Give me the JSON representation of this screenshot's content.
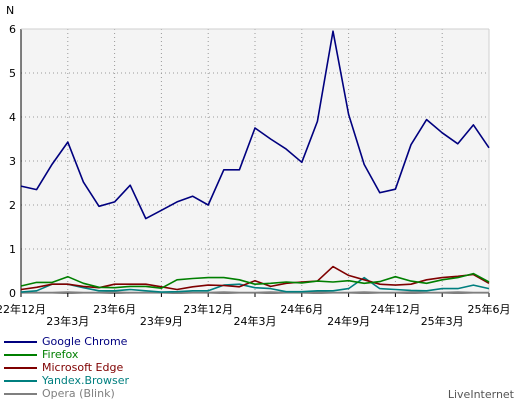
{
  "chart_data": {
    "type": "line",
    "ylabel": "N",
    "ylim": [
      0,
      6
    ],
    "yticks": [
      0,
      1,
      2,
      3,
      4,
      5,
      6
    ],
    "x_months": [
      "22年12月",
      "23年1月",
      "23年2月",
      "23年3月",
      "23年4月",
      "23年5月",
      "23年6月",
      "23年7月",
      "23年8月",
      "23年9月",
      "23年10月",
      "23年11月",
      "23年12月",
      "24年1月",
      "24年2月",
      "24年3月",
      "24年4月",
      "24年5月",
      "24年6月",
      "24年7月",
      "24年8月",
      "24年9月",
      "24年10月",
      "24年11月",
      "24年12月",
      "25年1月",
      "25年2月",
      "25年3月",
      "25年4月",
      "25年5月",
      "25年6月"
    ],
    "xtick_labels": [
      {
        "label": "22年12月",
        "index": 0,
        "row": 0
      },
      {
        "label": "23年3月",
        "index": 3,
        "row": 1
      },
      {
        "label": "23年6月",
        "index": 6,
        "row": 0
      },
      {
        "label": "23年9月",
        "index": 9,
        "row": 1
      },
      {
        "label": "23年12月",
        "index": 12,
        "row": 0
      },
      {
        "label": "24年3月",
        "index": 15,
        "row": 1
      },
      {
        "label": "24年6月",
        "index": 18,
        "row": 0
      },
      {
        "label": "24年9月",
        "index": 21,
        "row": 1
      },
      {
        "label": "24年12月",
        "index": 24,
        "row": 0
      },
      {
        "label": "25年3月",
        "index": 27,
        "row": 1
      },
      {
        "label": "25年6月",
        "index": 30,
        "row": 0
      }
    ],
    "grid": true,
    "legend_position": "bottom-left",
    "series": [
      {
        "name": "Google Chrome",
        "color": "#00007f",
        "values": [
          2.43,
          2.35,
          2.93,
          3.43,
          2.52,
          1.97,
          2.07,
          2.45,
          1.69,
          1.88,
          2.07,
          2.2,
          2.0,
          2.8,
          2.8,
          3.75,
          3.5,
          3.27,
          2.97,
          3.9,
          5.95,
          4.06,
          2.92,
          2.28,
          2.36,
          3.37,
          3.94,
          3.64,
          3.39,
          3.82,
          3.3
        ]
      },
      {
        "name": "Firefox",
        "color": "#007f00",
        "values": [
          0.16,
          0.24,
          0.24,
          0.37,
          0.22,
          0.13,
          0.12,
          0.15,
          0.15,
          0.11,
          0.3,
          0.33,
          0.35,
          0.35,
          0.3,
          0.2,
          0.22,
          0.25,
          0.23,
          0.27,
          0.25,
          0.28,
          0.22,
          0.26,
          0.37,
          0.27,
          0.22,
          0.3,
          0.35,
          0.44,
          0.25
        ]
      },
      {
        "name": "Microsoft Edge",
        "color": "#7f0000",
        "values": [
          0.08,
          0.13,
          0.2,
          0.2,
          0.15,
          0.12,
          0.2,
          0.2,
          0.2,
          0.14,
          0.08,
          0.14,
          0.18,
          0.17,
          0.14,
          0.28,
          0.15,
          0.22,
          0.25,
          0.27,
          0.6,
          0.4,
          0.3,
          0.2,
          0.18,
          0.2,
          0.3,
          0.35,
          0.38,
          0.42,
          0.22
        ]
      },
      {
        "name": "Yandex.Browser",
        "color": "#007f7f",
        "values": [
          0.02,
          0.05,
          0.2,
          0.2,
          0.12,
          0.05,
          0.05,
          0.08,
          0.05,
          0.02,
          0.03,
          0.05,
          0.05,
          0.18,
          0.2,
          0.12,
          0.1,
          0.03,
          0.03,
          0.05,
          0.05,
          0.1,
          0.35,
          0.1,
          0.08,
          0.06,
          0.05,
          0.1,
          0.1,
          0.18,
          0.1
        ]
      },
      {
        "name": "Opera (Blink)",
        "color": "#7f7f7f",
        "values": [
          0.01,
          0.01,
          0.01,
          0.02,
          0.01,
          0.01,
          0.02,
          0.01,
          0.01,
          0.01,
          0.02,
          0.01,
          0.01,
          0.02,
          0.01,
          0.01,
          0.02,
          0.01,
          0.01,
          0.02,
          0.01,
          0.01,
          0.02,
          0.01,
          0.01,
          0.02,
          0.01,
          0.01,
          0.02,
          0.01,
          0.01
        ]
      }
    ]
  },
  "brand": "LiveInternet"
}
